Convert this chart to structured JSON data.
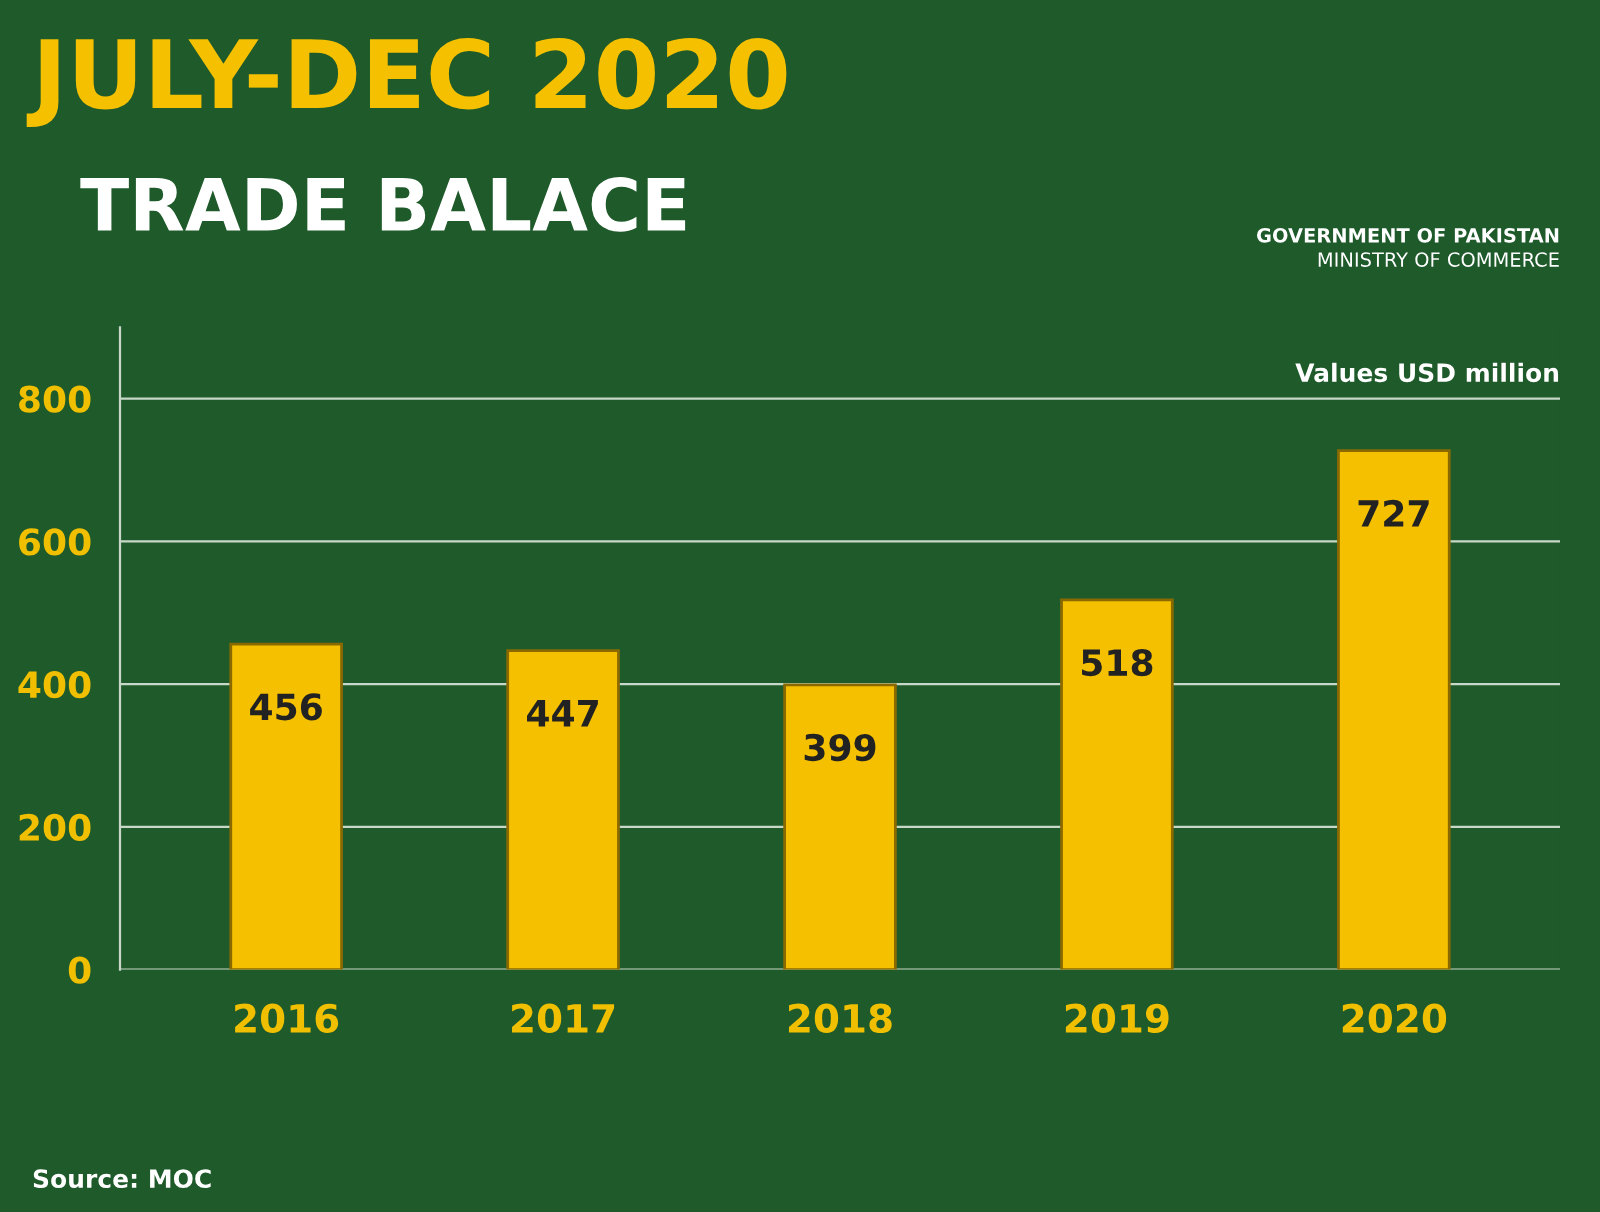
{
  "chart_data": {
    "type": "bar",
    "title": "JULY-DEC 2020",
    "subtitle": "TRADE BALACE",
    "categories": [
      "2016",
      "2017",
      "2018",
      "2019",
      "2020"
    ],
    "values": [
      456,
      447,
      399,
      518,
      727
    ],
    "color": "#f5c000",
    "ylim": [
      0,
      900
    ],
    "yticks": [
      0,
      200,
      400,
      600,
      800
    ],
    "grid": "y",
    "data_labels": true,
    "annotations": [
      "GOVERNMENT OF PAKISTAN",
      "MINISTRY OF COMMERCE",
      "Values USD million",
      "Source: MOC"
    ]
  }
}
